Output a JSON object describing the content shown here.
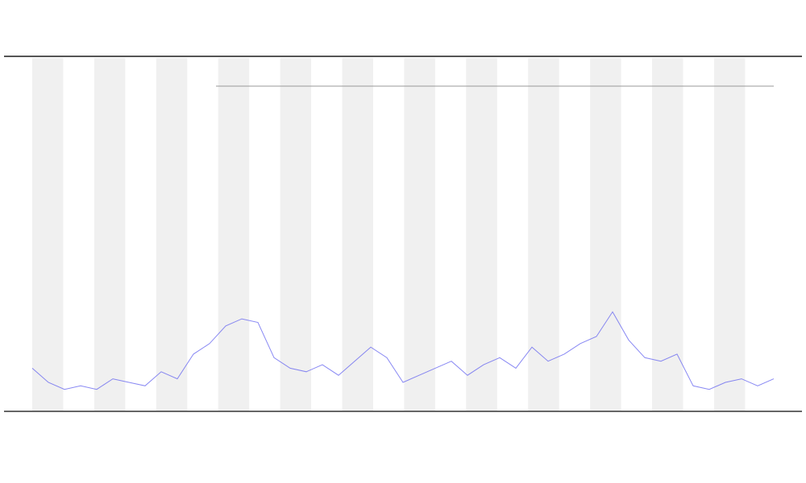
{
  "chart_data": {
    "type": "line",
    "categories": [
      null,
      null,
      null,
      null,
      null,
      null,
      null,
      null,
      null,
      null,
      null,
      null,
      null,
      null,
      null,
      null,
      null,
      null,
      null,
      null,
      null,
      null,
      null,
      null,
      null,
      null,
      null,
      null,
      null,
      null,
      null,
      null,
      null,
      null,
      null,
      null,
      null,
      null,
      null,
      null,
      null,
      null,
      null,
      null,
      null,
      null,
      null
    ],
    "series": [
      {
        "color": "#6a6af0",
        "values": [
          12,
          8,
          6,
          7,
          6,
          9,
          8,
          7,
          11,
          9,
          16,
          19,
          24,
          26,
          25,
          15,
          12,
          11,
          13,
          10,
          14,
          18,
          15,
          8,
          10,
          12,
          14,
          10,
          13,
          15,
          12,
          18,
          14,
          16,
          19,
          21,
          28,
          20,
          15,
          14,
          16,
          7,
          6,
          8,
          9,
          7,
          9
        ]
      }
    ],
    "ylim": [
      0,
      100
    ]
  }
}
